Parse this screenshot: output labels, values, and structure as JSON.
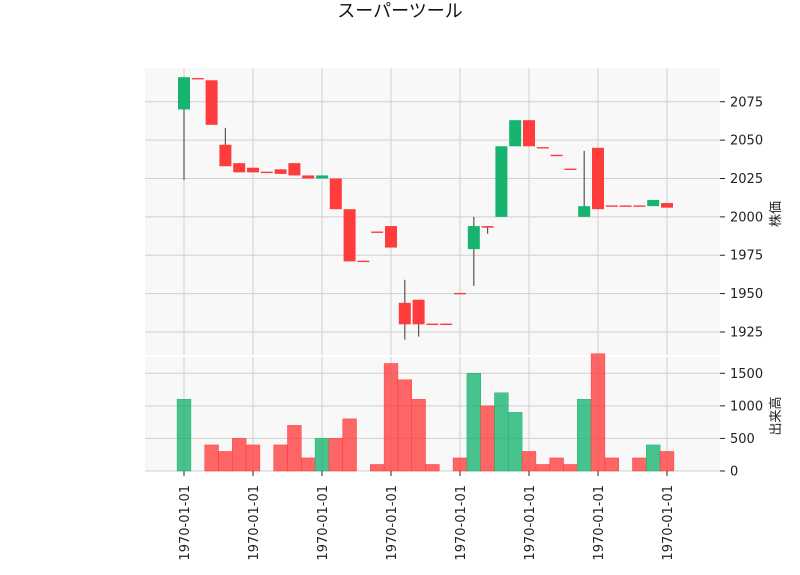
{
  "chart_data": {
    "type": "candlestick",
    "title": "スーパーツール",
    "price_axis_label": "株価",
    "volume_axis_label": "出来高",
    "price_ylim": [
      1910,
      2097
    ],
    "volume_ylim": [
      0,
      1750
    ],
    "price_ticks": [
      1925,
      1950,
      1975,
      2000,
      2025,
      2050,
      2075
    ],
    "volume_ticks": [
      0,
      500,
      1000,
      1500
    ],
    "x_tick_labels": [
      "1970-01-01",
      "1970-01-01",
      "1970-01-01",
      "1970-01-01",
      "1970-01-01",
      "1970-01-01",
      "1970-01-01",
      "1970-01-01"
    ],
    "x_tick_positions": [
      0,
      5,
      10,
      15,
      20,
      25,
      30,
      35
    ],
    "grid": true,
    "colors": {
      "up": "#16b46e",
      "down": "#ff3c3c",
      "wick": "#555555",
      "grid": "#d0d0d0",
      "background": "#f8f8f8"
    },
    "candles": [
      {
        "open": 2070,
        "high": 2091,
        "low": 2024,
        "close": 2091,
        "volume": 1100
      },
      {
        "open": 2090,
        "high": 2090,
        "low": 2090,
        "close": 2090,
        "volume": 0
      },
      {
        "open": 2089,
        "high": 2089,
        "low": 2060,
        "close": 2060,
        "volume": 400
      },
      {
        "open": 2047,
        "high": 2058,
        "low": 2033,
        "close": 2033,
        "volume": 300
      },
      {
        "open": 2035,
        "high": 2035,
        "low": 2029,
        "close": 2029,
        "volume": 500
      },
      {
        "open": 2032,
        "high": 2032,
        "low": 2029,
        "close": 2029,
        "volume": 400
      },
      {
        "open": 2029,
        "high": 2029,
        "low": 2029,
        "close": 2029,
        "volume": 0
      },
      {
        "open": 2031,
        "high": 2031,
        "low": 2028,
        "close": 2028,
        "volume": 400
      },
      {
        "open": 2035,
        "high": 2035,
        "low": 2027,
        "close": 2027,
        "volume": 700
      },
      {
        "open": 2027,
        "high": 2027,
        "low": 2025,
        "close": 2025,
        "volume": 200
      },
      {
        "open": 2025,
        "high": 2027,
        "low": 2025,
        "close": 2027,
        "volume": 500
      },
      {
        "open": 2025,
        "high": 2025,
        "low": 2005,
        "close": 2005,
        "volume": 500
      },
      {
        "open": 2005,
        "high": 2005,
        "low": 1971,
        "close": 1971,
        "volume": 800
      },
      {
        "open": 1971,
        "high": 1971,
        "low": 1971,
        "close": 1971,
        "volume": 0
      },
      {
        "open": 1990,
        "high": 1990,
        "low": 1990,
        "close": 1990,
        "volume": 100
      },
      {
        "open": 1994,
        "high": 1994,
        "low": 1980,
        "close": 1980,
        "volume": 1650
      },
      {
        "open": 1944,
        "high": 1959,
        "low": 1920,
        "close": 1930,
        "volume": 1400
      },
      {
        "open": 1946,
        "high": 1946,
        "low": 1922,
        "close": 1930,
        "volume": 1100
      },
      {
        "open": 1930,
        "high": 1930,
        "low": 1930,
        "close": 1930,
        "volume": 100
      },
      {
        "open": 1930,
        "high": 1930,
        "low": 1930,
        "close": 1930,
        "volume": 0
      },
      {
        "open": 1950,
        "high": 1950,
        "low": 1950,
        "close": 1950,
        "volume": 200
      },
      {
        "open": 1979,
        "high": 2000,
        "low": 1955,
        "close": 1994,
        "volume": 1500
      },
      {
        "open": 1994,
        "high": 1994,
        "low": 1989,
        "close": 1993,
        "volume": 1000
      },
      {
        "open": 2000,
        "high": 2046,
        "low": 2000,
        "close": 2046,
        "volume": 1200
      },
      {
        "open": 2046,
        "high": 2063,
        "low": 2046,
        "close": 2063,
        "volume": 900
      },
      {
        "open": 2063,
        "high": 2063,
        "low": 2046,
        "close": 2046,
        "volume": 300
      },
      {
        "open": 2045,
        "high": 2045,
        "low": 2045,
        "close": 2045,
        "volume": 100
      },
      {
        "open": 2040,
        "high": 2040,
        "low": 2040,
        "close": 2040,
        "volume": 200
      },
      {
        "open": 2031,
        "high": 2031,
        "low": 2031,
        "close": 2031,
        "volume": 100
      },
      {
        "open": 2000,
        "high": 2043,
        "low": 2000,
        "close": 2007,
        "volume": 1100
      },
      {
        "open": 2045,
        "high": 2045,
        "low": 2005,
        "close": 2005,
        "volume": 1800
      },
      {
        "open": 2007,
        "high": 2007,
        "low": 2007,
        "close": 2007,
        "volume": 200
      },
      {
        "open": 2007,
        "high": 2007,
        "low": 2007,
        "close": 2007,
        "volume": 0
      },
      {
        "open": 2007,
        "high": 2007,
        "low": 2007,
        "close": 2007,
        "volume": 200
      },
      {
        "open": 2007,
        "high": 2011,
        "low": 2007,
        "close": 2011,
        "volume": 400
      },
      {
        "open": 2009,
        "high": 2009,
        "low": 2006,
        "close": 2006,
        "volume": 300
      }
    ]
  }
}
